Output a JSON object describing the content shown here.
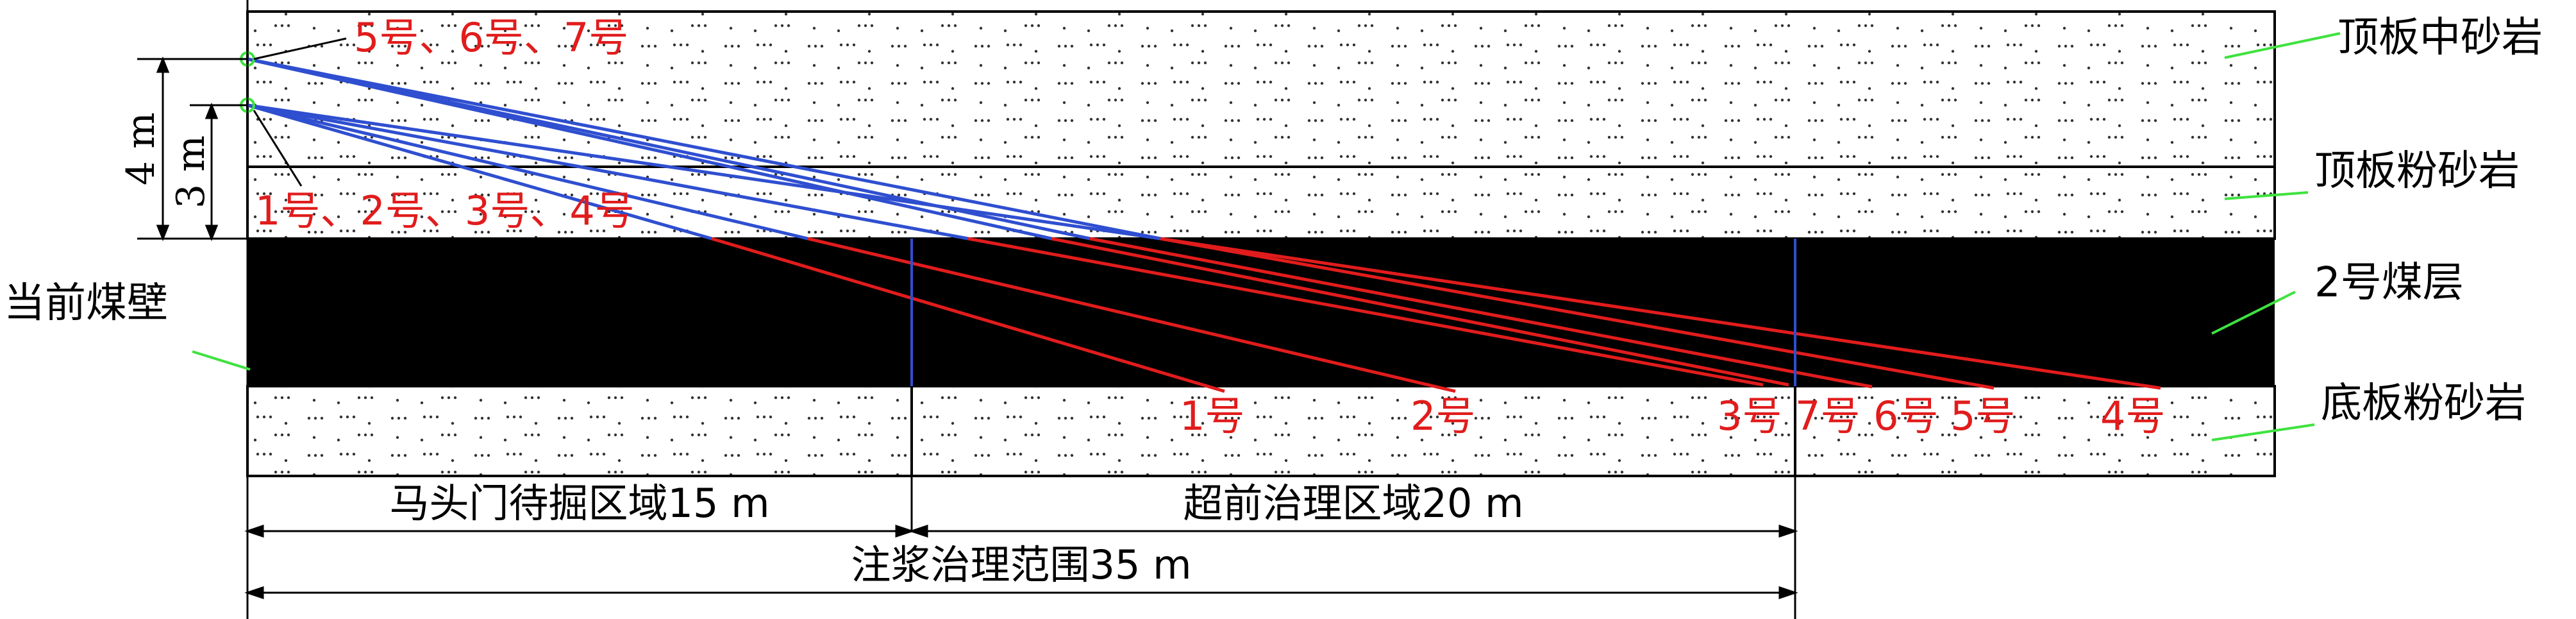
{
  "colors": {
    "background": "#ffffff",
    "coal": "#000000",
    "outline": "#000000",
    "hole_above": "#2f4fd0",
    "hole_in_coal": "#e11c1c",
    "zone_marker": "#2f4fd0",
    "red_text": "#e11c1c",
    "leader": "#3fe23f",
    "collar_marker": "#3fe23f",
    "dots": "#333333"
  },
  "strata": {
    "roof_medium_sandstone": "顶板中砂岩",
    "roof_siltstone": "顶板粉砂岩",
    "coal_seam": "2号煤层",
    "floor_siltstone": "底板粉砂岩",
    "current_coal_wall": "当前煤壁"
  },
  "borehole_groups": {
    "upper": "5号、6号、7号",
    "lower": "1号、2号、3号、4号"
  },
  "borehole_labels": [
    "1号",
    "2号",
    "3号",
    "7号",
    "6号",
    "5号",
    "4号"
  ],
  "heights": {
    "upper": "4 m",
    "lower": "3 m"
  },
  "zones": {
    "zone1": "马头门待掘区域15 m",
    "zone2": "超前治理区域20 m",
    "total": "注浆治理范围35 m"
  }
}
